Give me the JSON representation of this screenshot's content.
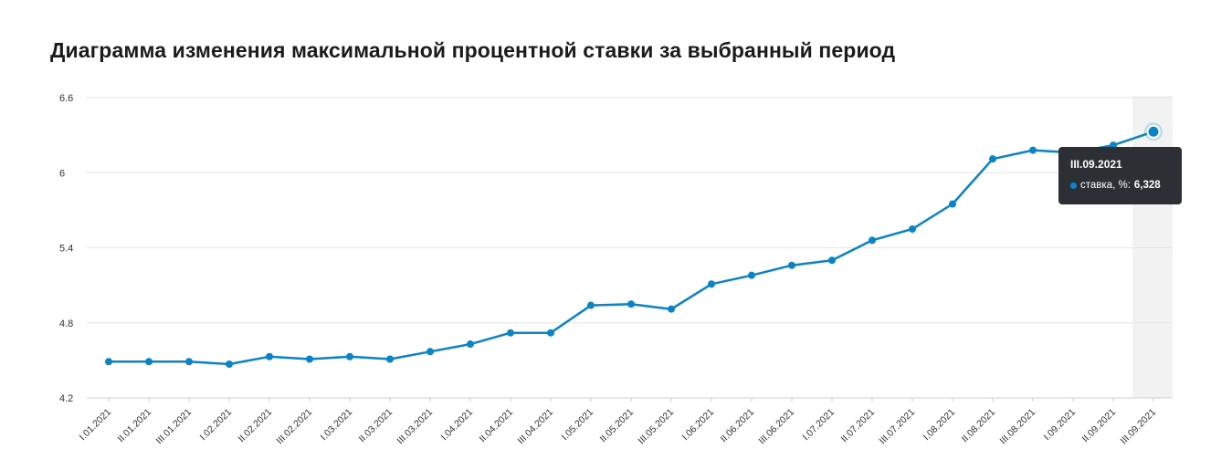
{
  "page": {
    "title": "Диаграмма изменения максимальной процентной ставки за выбранный период"
  },
  "colors": {
    "line": "#0a84c6",
    "grid": "#e6e6e6",
    "highlight_band": "#f2f2f2",
    "tooltip_bg": "#2c2f34"
  },
  "tooltip": {
    "title": "III.09.2021",
    "series_label": "ставка, %:",
    "value": "6,328"
  },
  "chart_data": {
    "type": "line",
    "title": "Диаграмма изменения максимальной процентной ставки за выбранный период",
    "xlabel": "",
    "ylabel": "",
    "ylim": [
      4.2,
      6.6
    ],
    "yticks": [
      4.2,
      4.8,
      5.4,
      6,
      6.6
    ],
    "ytick_labels": [
      "4.2",
      "4.8",
      "5.4",
      "6",
      "6.6"
    ],
    "grid": true,
    "highlighted_category": "III.09.2021",
    "categories": [
      "I.01.2021",
      "II.01.2021",
      "III.01.2021",
      "I.02.2021",
      "II.02.2021",
      "III.02.2021",
      "I.03.2021",
      "II.03.2021",
      "III.03.2021",
      "I.04.2021",
      "II.04.2021",
      "III.04.2021",
      "I.05.2021",
      "II.05.2021",
      "III.05.2021",
      "I.06.2021",
      "II.06.2021",
      "III.06.2021",
      "I.07.2021",
      "II.07.2021",
      "III.07.2021",
      "I.08.2021",
      "II.08.2021",
      "III.08.2021",
      "I.09.2021",
      "II.09.2021",
      "III.09.2021"
    ],
    "series": [
      {
        "name": "ставка, %",
        "values": [
          4.49,
          4.49,
          4.49,
          4.47,
          4.53,
          4.51,
          4.53,
          4.51,
          4.57,
          4.63,
          4.72,
          4.72,
          4.94,
          4.95,
          4.91,
          5.11,
          5.18,
          5.26,
          5.3,
          5.46,
          5.55,
          5.75,
          6.11,
          6.18,
          6.16,
          6.22,
          6.328
        ]
      }
    ]
  }
}
